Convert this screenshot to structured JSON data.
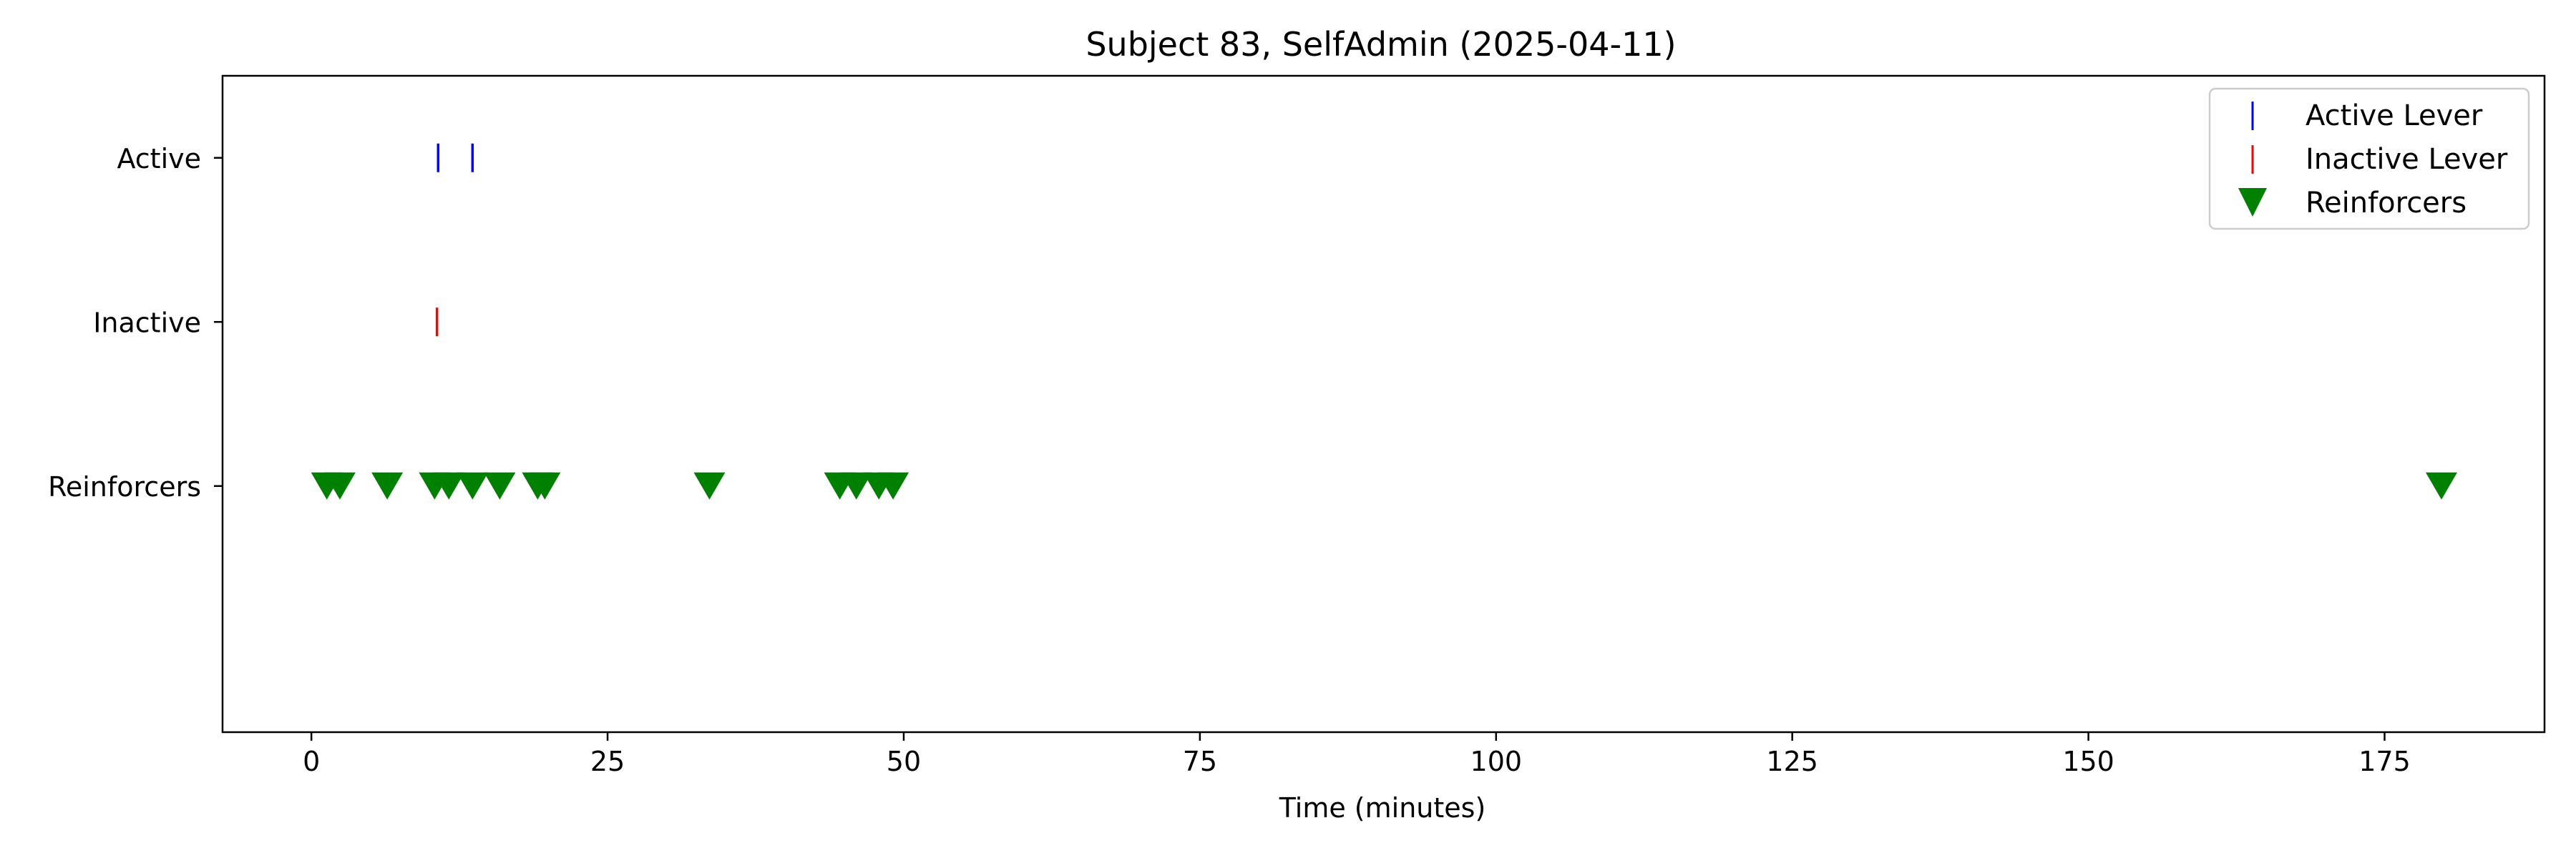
{
  "chart_data": {
    "type": "scatter",
    "title": "Subject 83, SelfAdmin (2025-04-11)",
    "xlabel": "Time (minutes)",
    "ylabel": "",
    "xlim": [
      -7.5,
      188.5
    ],
    "ylim": [
      -0.5,
      3.5
    ],
    "x_ticks": [
      0,
      25,
      50,
      75,
      100,
      125,
      150,
      175
    ],
    "y_categories": [
      {
        "label": "Active",
        "value": 3
      },
      {
        "label": "Inactive",
        "value": 2
      },
      {
        "label": "Reinforcers",
        "value": 1
      }
    ],
    "grid": false,
    "legend_position": "top-right",
    "series": [
      {
        "name": "Active Lever",
        "marker": "vline",
        "color": "#0000ff",
        "y": 3,
        "x": [
          10.7,
          13.6
        ]
      },
      {
        "name": "Inactive Lever",
        "marker": "vline",
        "color": "#ff0000",
        "y": 2,
        "x": [
          10.6
        ]
      },
      {
        "name": "Reinforcers",
        "marker": "triangle-down",
        "color": "#008000",
        "y": 1,
        "x": [
          1.3,
          2.4,
          6.4,
          10.4,
          11.6,
          13.6,
          15.9,
          19.1,
          19.7,
          33.6,
          44.6,
          46.0,
          47.9,
          49.1,
          179.8
        ]
      }
    ]
  }
}
